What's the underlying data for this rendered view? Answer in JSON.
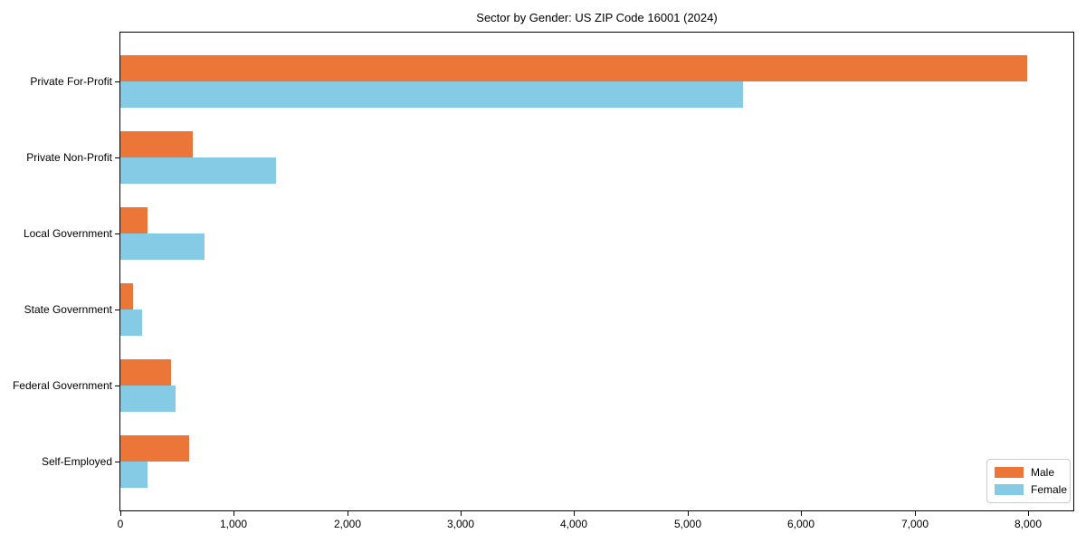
{
  "figure": {
    "title": "Sector by Gender: US ZIP Code 16001 (2024)"
  },
  "chart_data": {
    "type": "bar",
    "orientation": "horizontal",
    "title": "Sector by Gender: US ZIP Code 16001 (2024)",
    "xlabel": "",
    "ylabel": "",
    "categories": [
      "Private For-Profit",
      "Private Non-Profit",
      "Local Government",
      "State Government",
      "Federal Government",
      "Self-Employed"
    ],
    "series": [
      {
        "name": "Male",
        "color": "#EC7638",
        "values": [
          7990,
          640,
          240,
          110,
          450,
          610
        ]
      },
      {
        "name": "Female",
        "color": "#86CBE5",
        "values": [
          5490,
          1370,
          740,
          190,
          490,
          240
        ]
      }
    ],
    "xlim": [
      0,
      8400
    ],
    "xticks": [
      0,
      1000,
      2000,
      3000,
      4000,
      5000,
      6000,
      7000,
      8000
    ],
    "xtick_labels": [
      "0",
      "1,000",
      "2,000",
      "3,000",
      "4,000",
      "5,000",
      "6,000",
      "7,000",
      "8,000"
    ],
    "grid": false,
    "legend": {
      "position": "lower right",
      "entries": [
        "Male",
        "Female"
      ]
    },
    "colors": {
      "male": "#EC7638",
      "female": "#86CBE5",
      "axis": "#000000",
      "background": "#FFFFFF",
      "legend_border": "#CCCCCC"
    }
  }
}
